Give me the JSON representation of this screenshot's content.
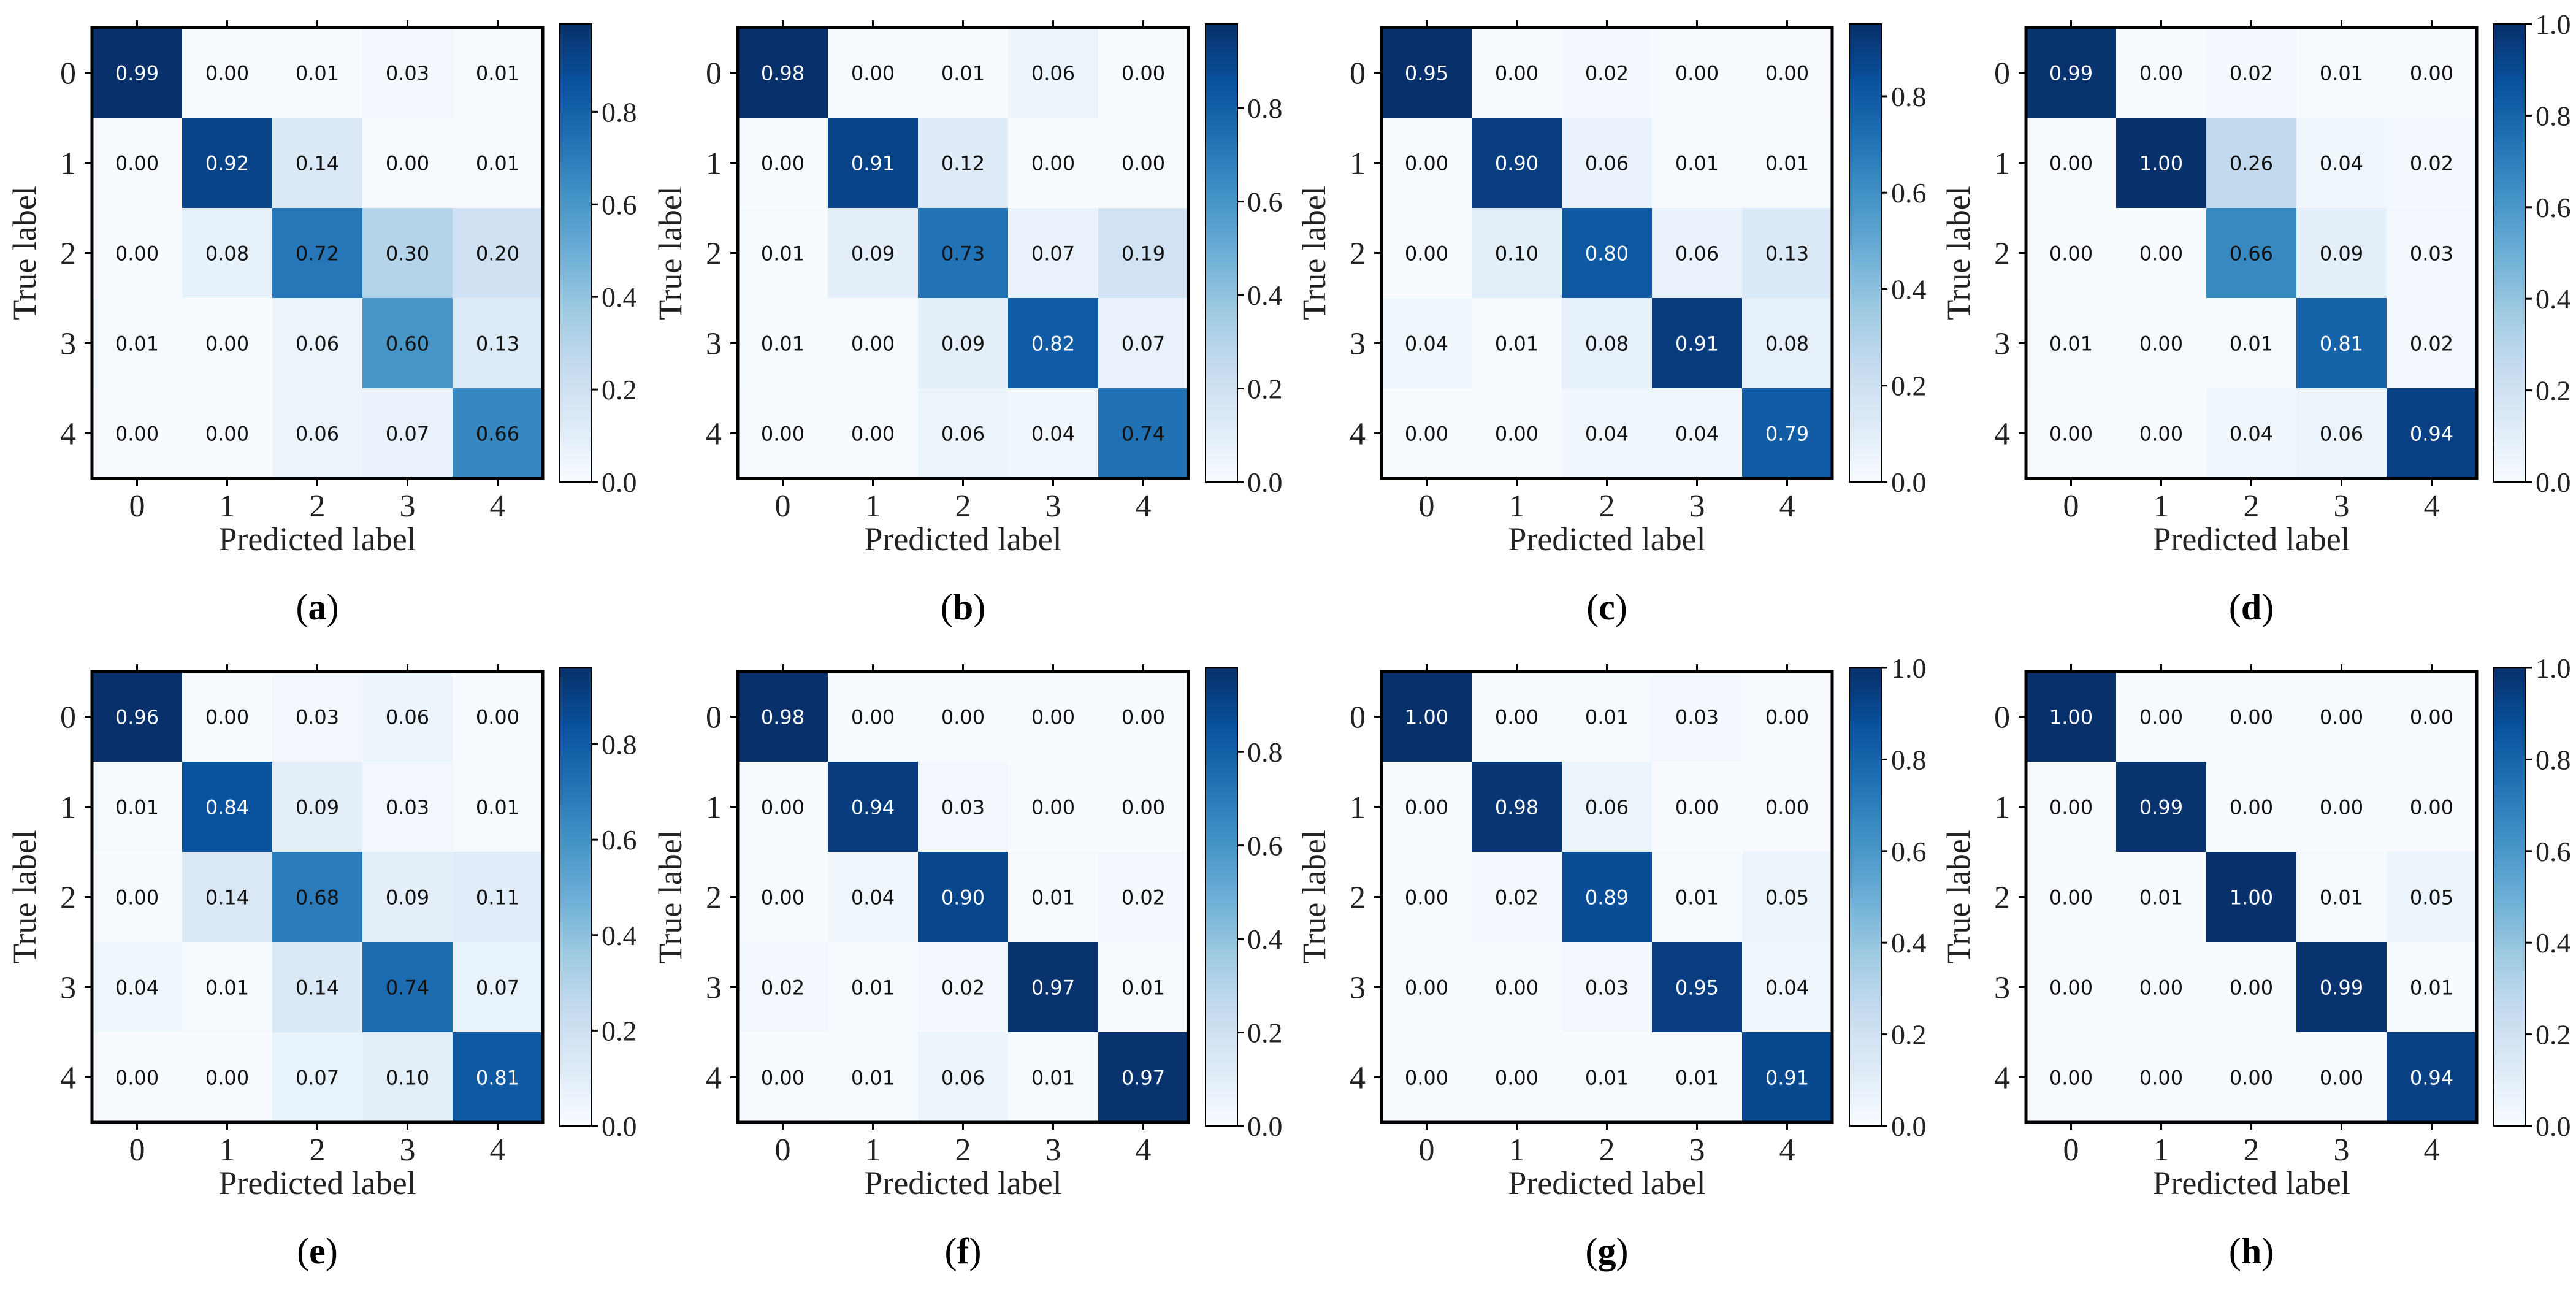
{
  "figure": {
    "x_axis_label": "Predicted label",
    "y_axis_label": "True label",
    "class_labels": [
      "0",
      "1",
      "2",
      "3",
      "4"
    ]
  },
  "chart_data": [
    {
      "type": "heatmap",
      "caption_letter": "a",
      "x_categories": [
        "0",
        "1",
        "2",
        "3",
        "4"
      ],
      "y_categories": [
        "0",
        "1",
        "2",
        "3",
        "4"
      ],
      "xlabel": "Predicted label",
      "ylabel": "True label",
      "matrix": [
        [
          "0.99",
          "0.00",
          "0.01",
          "0.03",
          "0.01"
        ],
        [
          "0.00",
          "0.92",
          "0.14",
          "0.00",
          "0.01"
        ],
        [
          "0.00",
          "0.08",
          "0.72",
          "0.30",
          "0.20"
        ],
        [
          "0.01",
          "0.00",
          "0.06",
          "0.60",
          "0.13"
        ],
        [
          "0.00",
          "0.00",
          "0.06",
          "0.07",
          "0.66"
        ]
      ],
      "colorbar": {
        "min": 0.0,
        "max": 0.99,
        "ticks": [
          "0.0",
          "0.2",
          "0.4",
          "0.6",
          "0.8"
        ]
      }
    },
    {
      "type": "heatmap",
      "caption_letter": "b",
      "x_categories": [
        "0",
        "1",
        "2",
        "3",
        "4"
      ],
      "y_categories": [
        "0",
        "1",
        "2",
        "3",
        "4"
      ],
      "xlabel": "Predicted label",
      "ylabel": "True label",
      "matrix": [
        [
          "0.98",
          "0.00",
          "0.01",
          "0.06",
          "0.00"
        ],
        [
          "0.00",
          "0.91",
          "0.12",
          "0.00",
          "0.00"
        ],
        [
          "0.01",
          "0.09",
          "0.73",
          "0.07",
          "0.19"
        ],
        [
          "0.01",
          "0.00",
          "0.09",
          "0.82",
          "0.07"
        ],
        [
          "0.00",
          "0.00",
          "0.06",
          "0.04",
          "0.74"
        ]
      ],
      "colorbar": {
        "min": 0.0,
        "max": 0.98,
        "ticks": [
          "0.0",
          "0.2",
          "0.4",
          "0.6",
          "0.8"
        ]
      }
    },
    {
      "type": "heatmap",
      "caption_letter": "c",
      "x_categories": [
        "0",
        "1",
        "2",
        "3",
        "4"
      ],
      "y_categories": [
        "0",
        "1",
        "2",
        "3",
        "4"
      ],
      "xlabel": "Predicted label",
      "ylabel": "True label",
      "matrix": [
        [
          "0.95",
          "0.00",
          "0.02",
          "0.00",
          "0.00"
        ],
        [
          "0.00",
          "0.90",
          "0.06",
          "0.01",
          "0.01"
        ],
        [
          "0.00",
          "0.10",
          "0.80",
          "0.06",
          "0.13"
        ],
        [
          "0.04",
          "0.01",
          "0.08",
          "0.91",
          "0.08"
        ],
        [
          "0.00",
          "0.00",
          "0.04",
          "0.04",
          "0.79"
        ]
      ],
      "colorbar": {
        "min": 0.0,
        "max": 0.95,
        "ticks": [
          "0.0",
          "0.2",
          "0.4",
          "0.6",
          "0.8"
        ]
      }
    },
    {
      "type": "heatmap",
      "caption_letter": "d",
      "x_categories": [
        "0",
        "1",
        "2",
        "3",
        "4"
      ],
      "y_categories": [
        "0",
        "1",
        "2",
        "3",
        "4"
      ],
      "xlabel": "Predicted label",
      "ylabel": "True label",
      "matrix": [
        [
          "0.99",
          "0.00",
          "0.02",
          "0.01",
          "0.00"
        ],
        [
          "0.00",
          "1.00",
          "0.26",
          "0.04",
          "0.02"
        ],
        [
          "0.00",
          "0.00",
          "0.66",
          "0.09",
          "0.03"
        ],
        [
          "0.01",
          "0.00",
          "0.01",
          "0.81",
          "0.02"
        ],
        [
          "0.00",
          "0.00",
          "0.04",
          "0.06",
          "0.94"
        ]
      ],
      "colorbar": {
        "min": 0.0,
        "max": 1.0,
        "ticks": [
          "0.0",
          "0.2",
          "0.4",
          "0.6",
          "0.8",
          "1.0"
        ]
      }
    },
    {
      "type": "heatmap",
      "caption_letter": "e",
      "x_categories": [
        "0",
        "1",
        "2",
        "3",
        "4"
      ],
      "y_categories": [
        "0",
        "1",
        "2",
        "3",
        "4"
      ],
      "xlabel": "Predicted label",
      "ylabel": "True label",
      "matrix": [
        [
          "0.96",
          "0.00",
          "0.03",
          "0.06",
          "0.00"
        ],
        [
          "0.01",
          "0.84",
          "0.09",
          "0.03",
          "0.01"
        ],
        [
          "0.00",
          "0.14",
          "0.68",
          "0.09",
          "0.11"
        ],
        [
          "0.04",
          "0.01",
          "0.14",
          "0.74",
          "0.07"
        ],
        [
          "0.00",
          "0.00",
          "0.07",
          "0.10",
          "0.81"
        ]
      ],
      "colorbar": {
        "min": 0.0,
        "max": 0.96,
        "ticks": [
          "0.0",
          "0.2",
          "0.4",
          "0.6",
          "0.8"
        ]
      }
    },
    {
      "type": "heatmap",
      "caption_letter": "f",
      "x_categories": [
        "0",
        "1",
        "2",
        "3",
        "4"
      ],
      "y_categories": [
        "0",
        "1",
        "2",
        "3",
        "4"
      ],
      "xlabel": "Predicted label",
      "ylabel": "True label",
      "matrix": [
        [
          "0.98",
          "0.00",
          "0.00",
          "0.00",
          "0.00"
        ],
        [
          "0.00",
          "0.94",
          "0.03",
          "0.00",
          "0.00"
        ],
        [
          "0.00",
          "0.04",
          "0.90",
          "0.01",
          "0.02"
        ],
        [
          "0.02",
          "0.01",
          "0.02",
          "0.97",
          "0.01"
        ],
        [
          "0.00",
          "0.01",
          "0.06",
          "0.01",
          "0.97"
        ]
      ],
      "colorbar": {
        "min": 0.0,
        "max": 0.98,
        "ticks": [
          "0.0",
          "0.2",
          "0.4",
          "0.6",
          "0.8"
        ]
      }
    },
    {
      "type": "heatmap",
      "caption_letter": "g",
      "x_categories": [
        "0",
        "1",
        "2",
        "3",
        "4"
      ],
      "y_categories": [
        "0",
        "1",
        "2",
        "3",
        "4"
      ],
      "xlabel": "Predicted label",
      "ylabel": "True label",
      "matrix": [
        [
          "1.00",
          "0.00",
          "0.01",
          "0.03",
          "0.00"
        ],
        [
          "0.00",
          "0.98",
          "0.06",
          "0.00",
          "0.00"
        ],
        [
          "0.00",
          "0.02",
          "0.89",
          "0.01",
          "0.05"
        ],
        [
          "0.00",
          "0.00",
          "0.03",
          "0.95",
          "0.04"
        ],
        [
          "0.00",
          "0.00",
          "0.01",
          "0.01",
          "0.91"
        ]
      ],
      "colorbar": {
        "min": 0.0,
        "max": 1.0,
        "ticks": [
          "0.0",
          "0.2",
          "0.4",
          "0.6",
          "0.8",
          "1.0"
        ]
      }
    },
    {
      "type": "heatmap",
      "caption_letter": "h",
      "x_categories": [
        "0",
        "1",
        "2",
        "3",
        "4"
      ],
      "y_categories": [
        "0",
        "1",
        "2",
        "3",
        "4"
      ],
      "xlabel": "Predicted label",
      "ylabel": "True label",
      "matrix": [
        [
          "1.00",
          "0.00",
          "0.00",
          "0.00",
          "0.00"
        ],
        [
          "0.00",
          "0.99",
          "0.00",
          "0.00",
          "0.00"
        ],
        [
          "0.00",
          "0.01",
          "1.00",
          "0.01",
          "0.05"
        ],
        [
          "0.00",
          "0.00",
          "0.00",
          "0.99",
          "0.01"
        ],
        [
          "0.00",
          "0.00",
          "0.00",
          "0.00",
          "0.94"
        ]
      ],
      "colorbar": {
        "min": 0.0,
        "max": 1.0,
        "ticks": [
          "0.0",
          "0.2",
          "0.4",
          "0.6",
          "0.8",
          "1.0"
        ]
      }
    }
  ],
  "colors": {
    "low": "#f7fbff",
    "mid": "#2171b5",
    "high": "#08306b",
    "axis": "#000000",
    "text_dark": "#111111",
    "text_light": "#ffffff"
  }
}
